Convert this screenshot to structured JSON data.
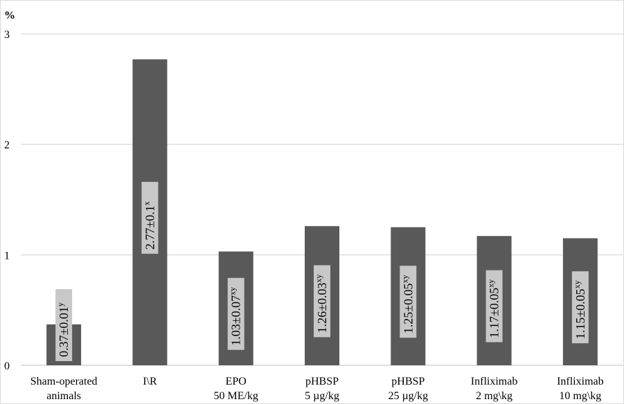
{
  "chart_data": {
    "type": "bar",
    "ylabel": "%",
    "ylim": [
      0,
      3
    ],
    "yticks": [
      "0",
      "1",
      "2",
      "3"
    ],
    "grid": true,
    "bar_color": "#595959",
    "label_box_color": "#c8c8c8",
    "categories": [
      [
        "Sham-operated",
        "animals"
      ],
      [
        "I\\R"
      ],
      [
        "EPO",
        "50 ME/kg"
      ],
      [
        "pHBSP",
        "5 µg/kg"
      ],
      [
        "pHBSP",
        "25 µg/kg"
      ],
      [
        "Infliximab",
        "2 mg\\kg"
      ],
      [
        "Infliximab",
        "10 mg\\kg"
      ]
    ],
    "values": [
      0.37,
      2.77,
      1.03,
      1.26,
      1.25,
      1.17,
      1.15
    ],
    "data_labels": [
      {
        "text": "0.37±0.01",
        "sup": "y"
      },
      {
        "text": "2.77±0.1",
        "sup": "x"
      },
      {
        "text": "1.03±0.07",
        "sup": "xy"
      },
      {
        "text": "1.26±0.03",
        "sup": "xy"
      },
      {
        "text": "1.25±0.05",
        "sup": "xy"
      },
      {
        "text": "1.17±0.05",
        "sup": "xy"
      },
      {
        "text": "1.15±0.05",
        "sup": "xy"
      }
    ]
  }
}
